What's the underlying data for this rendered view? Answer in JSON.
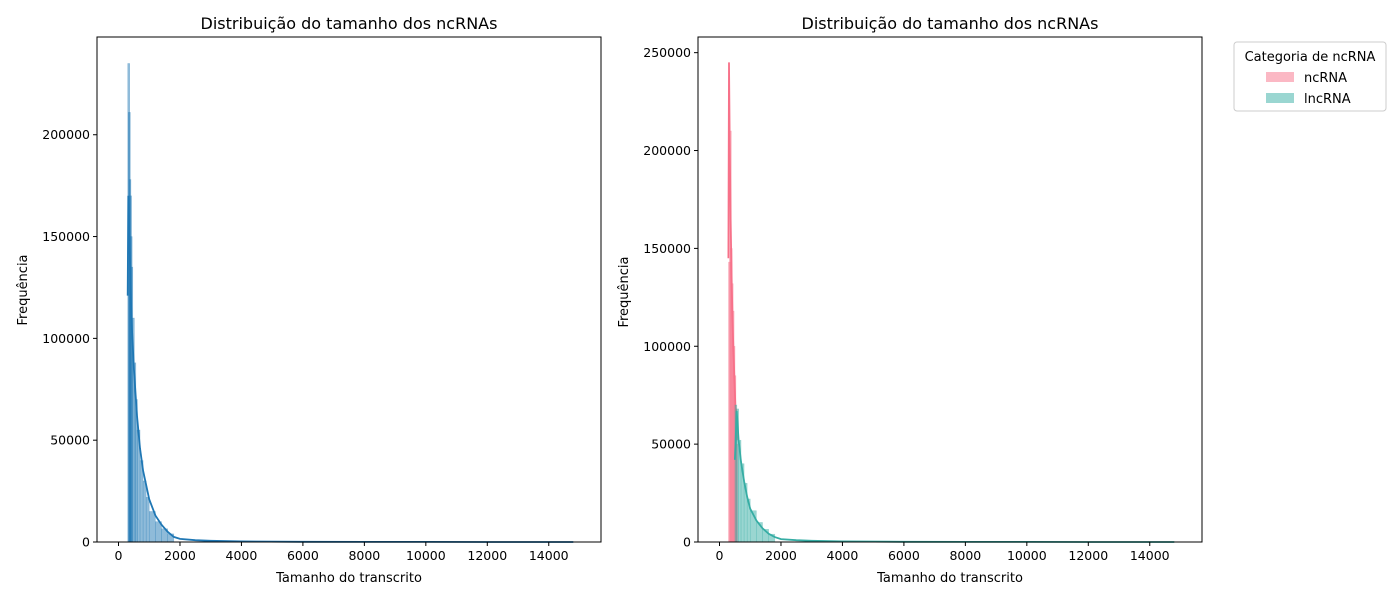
{
  "chart_data": [
    {
      "type": "histogram",
      "title": "Distribuição do tamanho dos ncRNAs",
      "xlabel": "Tamanho do transcrito",
      "ylabel": "Frequência",
      "xlim": [
        -700,
        15700
      ],
      "ylim": [
        0,
        248000
      ],
      "xticks": [
        0,
        2000,
        4000,
        6000,
        8000,
        10000,
        12000,
        14000
      ],
      "xtick_labels": [
        "0",
        "2000",
        "4000",
        "6000",
        "8000",
        "10000",
        "12000",
        "14000"
      ],
      "yticks": [
        0,
        50000,
        100000,
        150000,
        200000
      ],
      "ytick_labels": [
        "0",
        "50000",
        "100000",
        "150000",
        "200000"
      ],
      "grid": false,
      "series": [
        {
          "color": "#1f77b4",
          "kde": true,
          "hist_x": [
            300,
            320,
            340,
            360,
            380,
            400,
            450,
            500,
            550,
            600,
            700,
            800,
            900,
            1000,
            1200,
            1400,
            1600
          ],
          "hist_y": [
            235000,
            211000,
            178000,
            170000,
            150000,
            135000,
            110000,
            88000,
            70000,
            55000,
            40000,
            30000,
            22000,
            15000,
            10000,
            6500,
            4000
          ],
          "kde_x": [
            300,
            320,
            350,
            380,
            420,
            500,
            600,
            700,
            800,
            1000,
            1200,
            1400,
            1600,
            1800,
            2000,
            2500,
            3000,
            4000,
            6000,
            8000,
            10000,
            12000,
            14000,
            14800
          ],
          "kde_y": [
            121000,
            170000,
            150000,
            135000,
            110000,
            85000,
            62000,
            46000,
            35000,
            21000,
            13000,
            8500,
            5000,
            2500,
            1500,
            900,
            600,
            300,
            120,
            60,
            30,
            15,
            8,
            5
          ]
        }
      ]
    },
    {
      "type": "histogram",
      "title": "Distribuição do tamanho dos ncRNAs",
      "xlabel": "Tamanho do transcrito",
      "ylabel": "Frequência",
      "xlim": [
        -700,
        15700
      ],
      "ylim": [
        0,
        258000
      ],
      "xticks": [
        0,
        2000,
        4000,
        6000,
        8000,
        10000,
        12000,
        14000
      ],
      "xtick_labels": [
        "0",
        "2000",
        "4000",
        "6000",
        "8000",
        "10000",
        "12000",
        "14000"
      ],
      "yticks": [
        0,
        50000,
        100000,
        150000,
        200000,
        250000
      ],
      "ytick_labels": [
        "0",
        "50000",
        "100000",
        "150000",
        "200000",
        "250000"
      ],
      "grid": false,
      "legend": {
        "title": "Categoria de ncRNA",
        "placement": "outside-top-right"
      },
      "series": [
        {
          "name": "ncRNA",
          "color": "#f77189",
          "kde": true,
          "hist_x": [
            290,
            320,
            350,
            380,
            410,
            440,
            470,
            500,
            530
          ],
          "hist_y": [
            143000,
            210000,
            150000,
            132000,
            118000,
            100000,
            85000,
            68000,
            50000
          ],
          "kde_x": [
            290,
            310,
            330,
            360,
            400,
            440,
            480,
            520,
            560
          ],
          "kde_y": [
            145000,
            245000,
            205000,
            165000,
            130000,
            105000,
            85000,
            68000,
            52000
          ]
        },
        {
          "name": "lncRNA",
          "color": "#36ada4",
          "kde": true,
          "hist_x": [
            500,
            560,
            620,
            700,
            800,
            900,
            1000,
            1200,
            1400,
            1600
          ],
          "hist_y": [
            70000,
            68000,
            52000,
            40000,
            30000,
            22000,
            16000,
            10000,
            6500,
            4000
          ],
          "kde_x": [
            500,
            560,
            620,
            700,
            800,
            900,
            1000,
            1200,
            1400,
            1600,
            1800,
            2000,
            2500,
            3000,
            4000,
            6000,
            8000,
            10000,
            12000,
            14000,
            14800
          ],
          "kde_y": [
            42000,
            67000,
            52000,
            41000,
            31000,
            23000,
            17000,
            11000,
            7000,
            4200,
            2500,
            1500,
            900,
            600,
            300,
            120,
            60,
            30,
            15,
            8,
            5
          ]
        }
      ]
    }
  ]
}
